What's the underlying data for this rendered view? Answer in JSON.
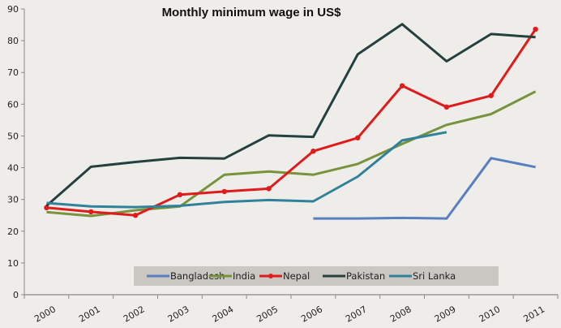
{
  "chart_data": {
    "type": "line",
    "title": "Monthly minimum wage in US$",
    "xlabel": "",
    "ylabel": "",
    "categories": [
      "2000",
      "2001",
      "2002",
      "2003",
      "2004",
      "2005",
      "2006",
      "2007",
      "2008",
      "2009",
      "2010",
      "2011"
    ],
    "ylim": [
      0,
      90
    ],
    "yticks": [
      0,
      10,
      20,
      30,
      40,
      50,
      60,
      70,
      80,
      90
    ],
    "grid": false,
    "legend_placement": "bottom-center",
    "series": [
      {
        "name": "Bangladesh",
        "color": "#5a7fc0",
        "markers": false,
        "values": [
          null,
          null,
          null,
          null,
          null,
          null,
          24,
          24,
          24.2,
          24,
          43,
          40.2
        ]
      },
      {
        "name": "India",
        "color": "#77933c",
        "markers": false,
        "values": [
          26,
          24.8,
          26.6,
          27.8,
          37.8,
          38.8,
          37.8,
          41.2,
          47.5,
          53.5,
          56.9,
          64
        ]
      },
      {
        "name": "Nepal",
        "color": "#e01b1b",
        "markers": true,
        "values": [
          27.4,
          26.1,
          25,
          31.5,
          32.5,
          33.4,
          45.2,
          49.4,
          65.8,
          59.1,
          62.7,
          83.6
        ]
      },
      {
        "name": "Pakistan",
        "color": "#24403f",
        "markers": false,
        "values": [
          28,
          40.3,
          41.8,
          43.1,
          42.9,
          50.2,
          49.7,
          75.7,
          85.2,
          73.5,
          82.1,
          81.1
        ]
      },
      {
        "name": "Sri Lanka",
        "color": "#31819a",
        "markers": false,
        "values": [
          28.9,
          27.8,
          27.6,
          28,
          29.2,
          29.8,
          29.4,
          37.2,
          48.6,
          51.2,
          null,
          null
        ]
      }
    ]
  }
}
